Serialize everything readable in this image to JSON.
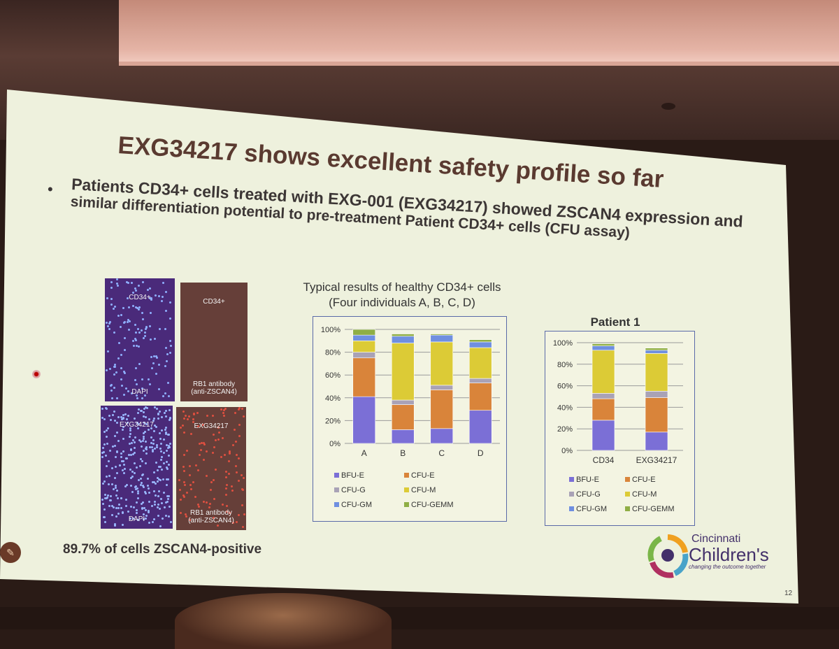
{
  "slide": {
    "title": "EXG34217 shows excellent safety profile so far",
    "bullet_marker": "•",
    "bullet_line1": "Patients CD34+ cells treated with EXG-001 (EXG34217) showed ZSCAN4 expression and",
    "bullet_line2": "similar differentiation potential to pre-treatment Patient CD34+ cells (CFU assay)",
    "bullet_line1_part": "Patients CD34+ cells treated with EXG-001 (EXG34217) showed ZSCAN4 expression and",
    "caption": "89.7% of cells ZSCAN4-positive",
    "page_number": "12"
  },
  "microscopy": {
    "panels": [
      {
        "top": "CD34+",
        "bottom1": "DAPI",
        "bottom2": ""
      },
      {
        "top": "CD34+",
        "bottom1": "RB1 antibody",
        "bottom2": "(anti-ZSCAN4)"
      },
      {
        "top": "EXG34217",
        "bottom1": "DAPI",
        "bottom2": ""
      },
      {
        "top": "EXG34217",
        "bottom1": "RB1 antibody",
        "bottom2": "(anti-ZSCAN4)"
      }
    ]
  },
  "logo": {
    "line1": "Cincinnati",
    "line2": "Children's",
    "tagline": "changing the outcome together"
  },
  "colors": {
    "BFU-E": "#7b6fd6",
    "CFU-E": "#d9843a",
    "CFU-G": "#a9a2b6",
    "CFU-M": "#dccb36",
    "CFU-GM": "#6f8fe0",
    "CFU-GEMM": "#8fae45"
  },
  "chart_data": [
    {
      "type": "bar",
      "stacked": true,
      "title_line1": "Typical results of healthy CD34+ cells",
      "title_line2": "(Four individuals A, B, C, D)",
      "categories": [
        "A",
        "B",
        "C",
        "D"
      ],
      "ylim": [
        0,
        100
      ],
      "yticks": [
        "0%",
        "20%",
        "40%",
        "60%",
        "80%",
        "100%"
      ],
      "grid": true,
      "legend_placement": "bottom",
      "series": [
        {
          "name": "BFU-E",
          "values": [
            41,
            12,
            13,
            29
          ]
        },
        {
          "name": "CFU-E",
          "values": [
            34,
            22,
            34,
            24
          ]
        },
        {
          "name": "CFU-G",
          "values": [
            5,
            4,
            4,
            4
          ]
        },
        {
          "name": "CFU-M",
          "values": [
            10,
            50,
            38,
            27
          ]
        },
        {
          "name": "CFU-GM",
          "values": [
            5,
            6,
            6,
            5
          ]
        },
        {
          "name": "CFU-GEMM",
          "values": [
            5,
            2,
            1,
            2
          ]
        }
      ]
    },
    {
      "type": "bar",
      "stacked": true,
      "title": "Patient 1",
      "categories": [
        "CD34",
        "EXG34217"
      ],
      "ylim": [
        0,
        100
      ],
      "yticks": [
        "0%",
        "20%",
        "40%",
        "60%",
        "80%",
        "100%"
      ],
      "grid": true,
      "legend_placement": "bottom",
      "series": [
        {
          "name": "BFU-E",
          "values": [
            28,
            17
          ]
        },
        {
          "name": "CFU-E",
          "values": [
            20,
            32
          ]
        },
        {
          "name": "CFU-G",
          "values": [
            5,
            6
          ]
        },
        {
          "name": "CFU-M",
          "values": [
            40,
            35
          ]
        },
        {
          "name": "CFU-GM",
          "values": [
            4,
            3
          ]
        },
        {
          "name": "CFU-GEMM",
          "values": [
            2,
            2
          ]
        }
      ]
    }
  ]
}
